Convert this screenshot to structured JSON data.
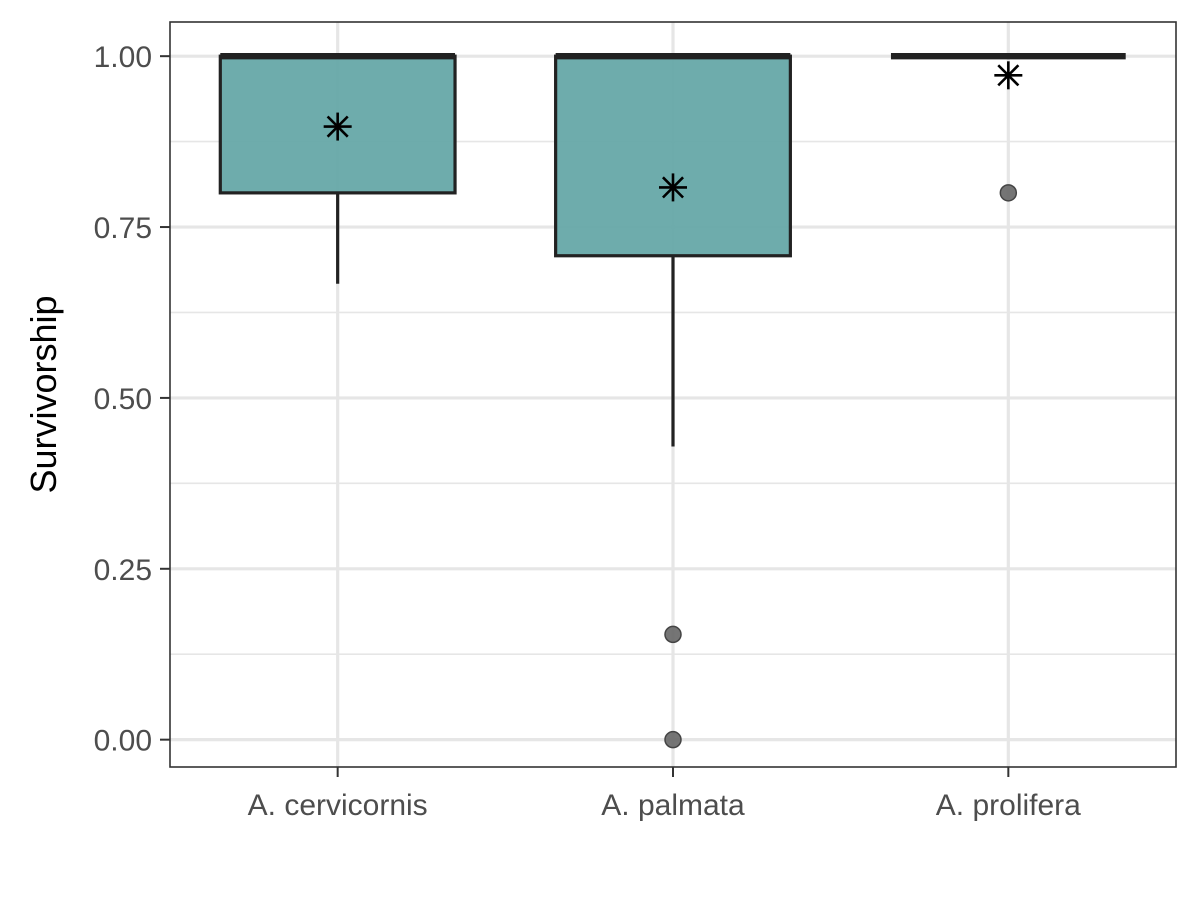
{
  "chart_data": {
    "type": "box",
    "title": "",
    "xlabel": "",
    "ylabel": "Survivorship",
    "ylim": [
      -0.04,
      1.05
    ],
    "y_ticks": [
      0.0,
      0.25,
      0.5,
      0.75,
      1.0
    ],
    "y_tick_labels": [
      "0.00",
      "0.25",
      "0.50",
      "0.75",
      "1.00"
    ],
    "grid": true,
    "legend": "none",
    "categories": [
      "A. cervicornis",
      "A. palmata",
      "A. prolifera"
    ],
    "boxes": [
      {
        "category": "A. cervicornis",
        "whisker_low": 0.667,
        "q1": 0.8,
        "median": 1.0,
        "q3": 1.0,
        "whisker_high": 1.0,
        "mean": 0.897,
        "outliers": []
      },
      {
        "category": "A. palmata",
        "whisker_low": 0.429,
        "q1": 0.708,
        "median": 1.0,
        "q3": 1.0,
        "whisker_high": 1.0,
        "mean": 0.808,
        "outliers": [
          0.154,
          0.0
        ]
      },
      {
        "category": "A. prolifera",
        "whisker_low": 1.0,
        "q1": 1.0,
        "median": 1.0,
        "q3": 1.0,
        "whisker_high": 1.0,
        "mean": 0.972,
        "outliers": [
          0.8
        ]
      }
    ],
    "colors": {
      "box_fill": "#66a8a8",
      "box_outline": "#222222",
      "outlier": "#666666",
      "mean_marker": "#000000",
      "grid": "#e6e6e6",
      "panel_border": "#333333"
    }
  }
}
